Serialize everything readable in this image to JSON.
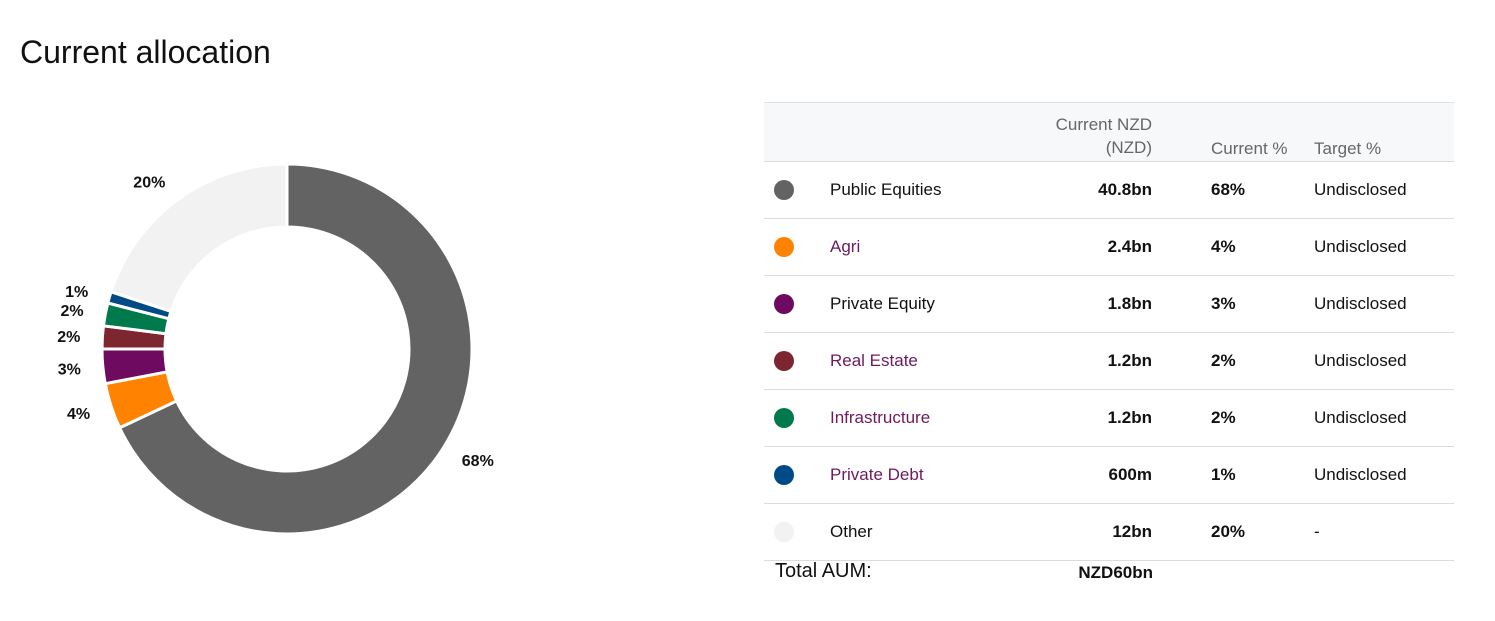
{
  "page": {
    "title": "Current allocation"
  },
  "table": {
    "headers": {
      "nzd_line1": "Current NZD",
      "nzd_line2": "(NZD)",
      "current_pct": "Current %",
      "target_pct": "Target %"
    },
    "rows": [
      {
        "name": "Public Equities",
        "nzd": "40.8bn",
        "current_pct": "68%",
        "target": "Undisclosed",
        "color": "#636363",
        "link": false
      },
      {
        "name": "Agri",
        "nzd": "2.4bn",
        "current_pct": "4%",
        "target": "Undisclosed",
        "color": "#ff8200",
        "link": true
      },
      {
        "name": "Private Equity",
        "nzd": "1.8bn",
        "current_pct": "3%",
        "target": "Undisclosed",
        "color": "#6e0a5f",
        "link": false
      },
      {
        "name": "Real Estate",
        "nzd": "1.2bn",
        "current_pct": "2%",
        "target": "Undisclosed",
        "color": "#7d2630",
        "link": true
      },
      {
        "name": "Infrastructure",
        "nzd": "1.2bn",
        "current_pct": "2%",
        "target": "Undisclosed",
        "color": "#007a4d",
        "link": true
      },
      {
        "name": "Private Debt",
        "nzd": "600m",
        "current_pct": "1%",
        "target": "Undisclosed",
        "color": "#004b87",
        "link": true
      },
      {
        "name": "Other",
        "nzd": "12bn",
        "current_pct": "20%",
        "target": "-",
        "color": "#f2f2f2",
        "link": false
      }
    ],
    "total": {
      "label": "Total AUM:",
      "value": "NZD60bn"
    }
  },
  "chart_data": {
    "type": "pie",
    "variant": "donut",
    "categories": [
      "Public Equities",
      "Agri",
      "Private Equity",
      "Real Estate",
      "Infrastructure",
      "Private Debt",
      "Other"
    ],
    "values": [
      68,
      4,
      3,
      2,
      2,
      1,
      20
    ],
    "labels": [
      "68%",
      "4%",
      "3%",
      "2%",
      "2%",
      "1%",
      "20%"
    ],
    "colors": [
      "#636363",
      "#ff8200",
      "#6e0a5f",
      "#7d2630",
      "#007a4d",
      "#004b87",
      "#f2f2f2"
    ],
    "title": "",
    "legend": "none"
  }
}
